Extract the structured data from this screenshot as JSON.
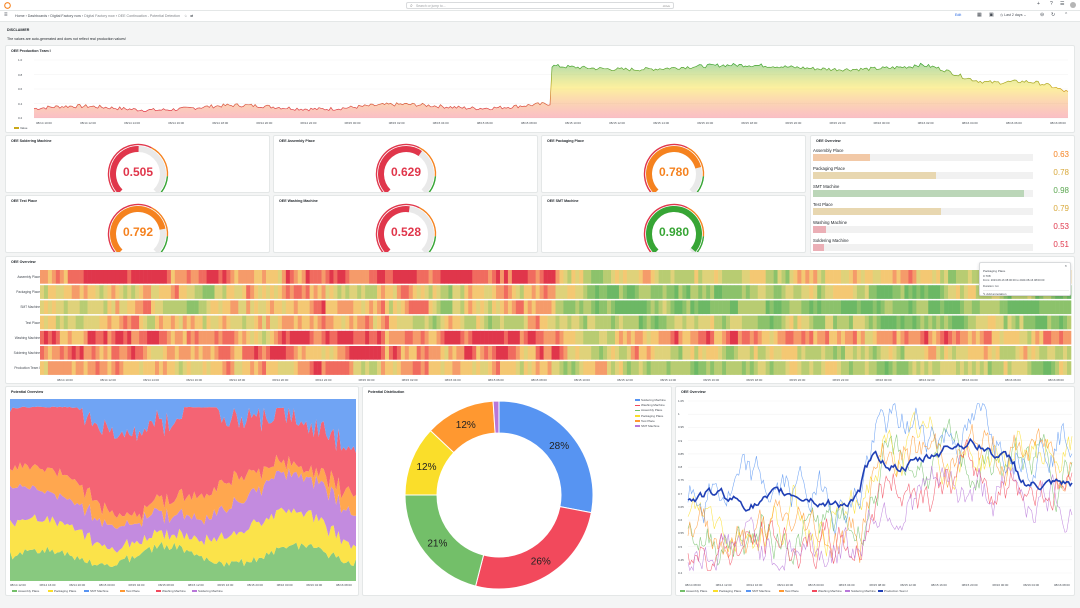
{
  "topbar": {
    "search_placeholder": "Search or jump to...",
    "search_shortcut": "ctrl+k"
  },
  "breadcrumb": {
    "home": "Home",
    "dashboards": "Dashboards",
    "folder": "Digital Factory now",
    "sub": "Digital Factory now",
    "page": "OEE Continuation - Potential Detection"
  },
  "toolbar": {
    "time_range": "Last 2 days",
    "edit": "Edit"
  },
  "disclaimer": {
    "title": "DISCLAIMER",
    "text": "The values are auto-generated and does not reflect real production values!"
  },
  "oee_team": {
    "title": "OEE Production Team I",
    "legend": "Value",
    "yticks": [
      "1.0",
      "0.8",
      "0.6",
      "0.4",
      "0.2"
    ],
    "xticks": [
      "08/14 10:00",
      "08/14 12:00",
      "08/14 14:00",
      "08/14 16:00",
      "08/14 18:00",
      "08/14 20:00",
      "08/14 22:00",
      "08/15 00:00",
      "08/15 02:00",
      "08/15 04:00",
      "08/15 06:00",
      "08/15 08:00",
      "08/15 10:00",
      "08/15 12:00",
      "08/15 14:00",
      "08/15 16:00",
      "08/15 18:00",
      "08/15 20:00",
      "08/15 22:00",
      "08/16 00:00",
      "08/16 02:00",
      "08/16 04:00",
      "08/16 06:00",
      "08/16 08:00"
    ]
  },
  "gauges": [
    {
      "title": "OEE Soldering Machine",
      "value": "0.505",
      "color": "#e0364b"
    },
    {
      "title": "OEE Assembly Place",
      "value": "0.629",
      "color": "#e0364b"
    },
    {
      "title": "OEE Packaging Place",
      "value": "0.780",
      "color": "#f5821f"
    },
    {
      "title": "OEE Test Place",
      "value": "0.792",
      "color": "#f5821f"
    },
    {
      "title": "OEE Washing Machine",
      "value": "0.528",
      "color": "#e0364b"
    },
    {
      "title": "OEE SMT Machine",
      "value": "0.980",
      "color": "#37a535"
    }
  ],
  "oee_bars": {
    "title": "OEE Overview",
    "items": [
      {
        "label": "Assembly Place",
        "value": "0.63",
        "color": "#f5821f"
      },
      {
        "label": "Packaging Place",
        "value": "0.78",
        "color": "#d8a83a"
      },
      {
        "label": "SMT Machine",
        "value": "0.98",
        "color": "#5aa64f"
      },
      {
        "label": "Test Place",
        "value": "0.79",
        "color": "#d8a83a"
      },
      {
        "label": "Washing Machine",
        "value": "0.53",
        "color": "#e0364b"
      },
      {
        "label": "Soldering Machine",
        "value": "0.51",
        "color": "#e0364b"
      }
    ]
  },
  "heatmap": {
    "title": "OEE Overview",
    "rows": [
      "Assembly Place",
      "Packaging Place",
      "SMT Machine",
      "Test Place",
      "Washing Machine",
      "Soldering Machine",
      "Production Team I"
    ],
    "xticks": [
      "08/14 10:00",
      "08/14 12:00",
      "08/14 14:00",
      "08/14 16:00",
      "08/14 18:00",
      "08/14 20:00",
      "08/14 22:00",
      "08/15 00:00",
      "08/15 02:00",
      "08/15 04:00",
      "08/15 06:00",
      "08/15 08:00",
      "08/15 10:00",
      "08/15 12:00",
      "08/15 14:00",
      "08/15 16:00",
      "08/15 18:00",
      "08/15 20:00",
      "08/15 22:00",
      "08/16 00:00",
      "08/16 02:00",
      "08/16 04:00",
      "08/16 06:00",
      "08/16 08:00"
    ],
    "tooltip": {
      "title": "Packaging Place",
      "value": "0.708",
      "from": "From: 2023-08-16 08:00:00 to 2023-08-16 08:00:00",
      "duration": "Duration: 1m",
      "action": "Add annotation"
    }
  },
  "potential_overview": {
    "title": "Potential Overview",
    "xticks": [
      "08/14 12:00",
      "08/14 16:00",
      "08/14 20:00",
      "08/15 00:00",
      "08/15 04:00",
      "08/15 08:00",
      "08/15 12:00",
      "08/15 16:00",
      "08/15 20:00",
      "08/16 00:00",
      "08/16 04:00",
      "08/16 08:00"
    ],
    "legend": [
      {
        "name": "Assembly Place",
        "color": "#73bf69"
      },
      {
        "name": "Packaging Place",
        "color": "#fade2a"
      },
      {
        "name": "SMT Machine",
        "color": "#5794f2"
      },
      {
        "name": "Test Place",
        "color": "#ff9830"
      },
      {
        "name": "Washing Machine",
        "color": "#f2495c"
      },
      {
        "name": "Soldering Machine",
        "color": "#b877d9"
      }
    ]
  },
  "potential_distribution": {
    "title": "Potential Distribution",
    "legend": [
      {
        "name": "Soldering Machine",
        "color": "#5794f2"
      },
      {
        "name": "Washing Machine",
        "color": "#f2495c"
      },
      {
        "name": "Assembly Place",
        "color": "#73bf69"
      },
      {
        "name": "Packaging Place",
        "color": "#fade2a"
      },
      {
        "name": "Test Place",
        "color": "#ff9830"
      },
      {
        "name": "SMT Machine",
        "color": "#b877d9"
      }
    ]
  },
  "oee_lines": {
    "title": "OEE Overview",
    "yticks": [
      "1.05",
      "1",
      "0.95",
      "0.9",
      "0.85",
      "0.8",
      "0.75",
      "0.7",
      "0.65",
      "0.6",
      "0.55",
      "0.5",
      "0.45",
      "0.4"
    ],
    "xticks": [
      "08/14 08:00",
      "08/14 12:00",
      "08/14 16:00",
      "08/14 20:00",
      "08/15 00:00",
      "08/15 04:00",
      "08/15 08:00",
      "08/15 12:00",
      "08/15 16:00",
      "08/15 20:00",
      "08/16 00:00",
      "08/16 04:00",
      "08/16 08:00"
    ],
    "legend": [
      {
        "name": "Assembly Place",
        "color": "#73bf69"
      },
      {
        "name": "Packaging Place",
        "color": "#fade2a"
      },
      {
        "name": "SMT Machine",
        "color": "#5794f2"
      },
      {
        "name": "Test Place",
        "color": "#ff9830"
      },
      {
        "name": "Washing Machine",
        "color": "#f2495c"
      },
      {
        "name": "Soldering Machine",
        "color": "#b877d9"
      },
      {
        "name": "Production Team I",
        "color": "#1f3fb5"
      }
    ]
  },
  "chart_data": [
    {
      "type": "area",
      "title": "OEE Production Team I",
      "series": [
        {
          "name": "Value",
          "start": 0.35,
          "jump_at_fraction": 0.5,
          "after_jump": 0.92,
          "end": 0.55
        }
      ],
      "ylim": [
        0.2,
        1.0
      ]
    },
    {
      "type": "pie",
      "title": "Potential Distribution",
      "categories": [
        "Soldering Machine",
        "Washing Machine",
        "Assembly Place",
        "Packaging Place",
        "Test Place",
        "SMT Machine"
      ],
      "values": [
        28,
        26,
        21,
        12,
        12,
        1
      ],
      "labels": [
        "28%",
        "26%",
        "21%",
        "12%",
        "12%",
        ""
      ]
    }
  ]
}
